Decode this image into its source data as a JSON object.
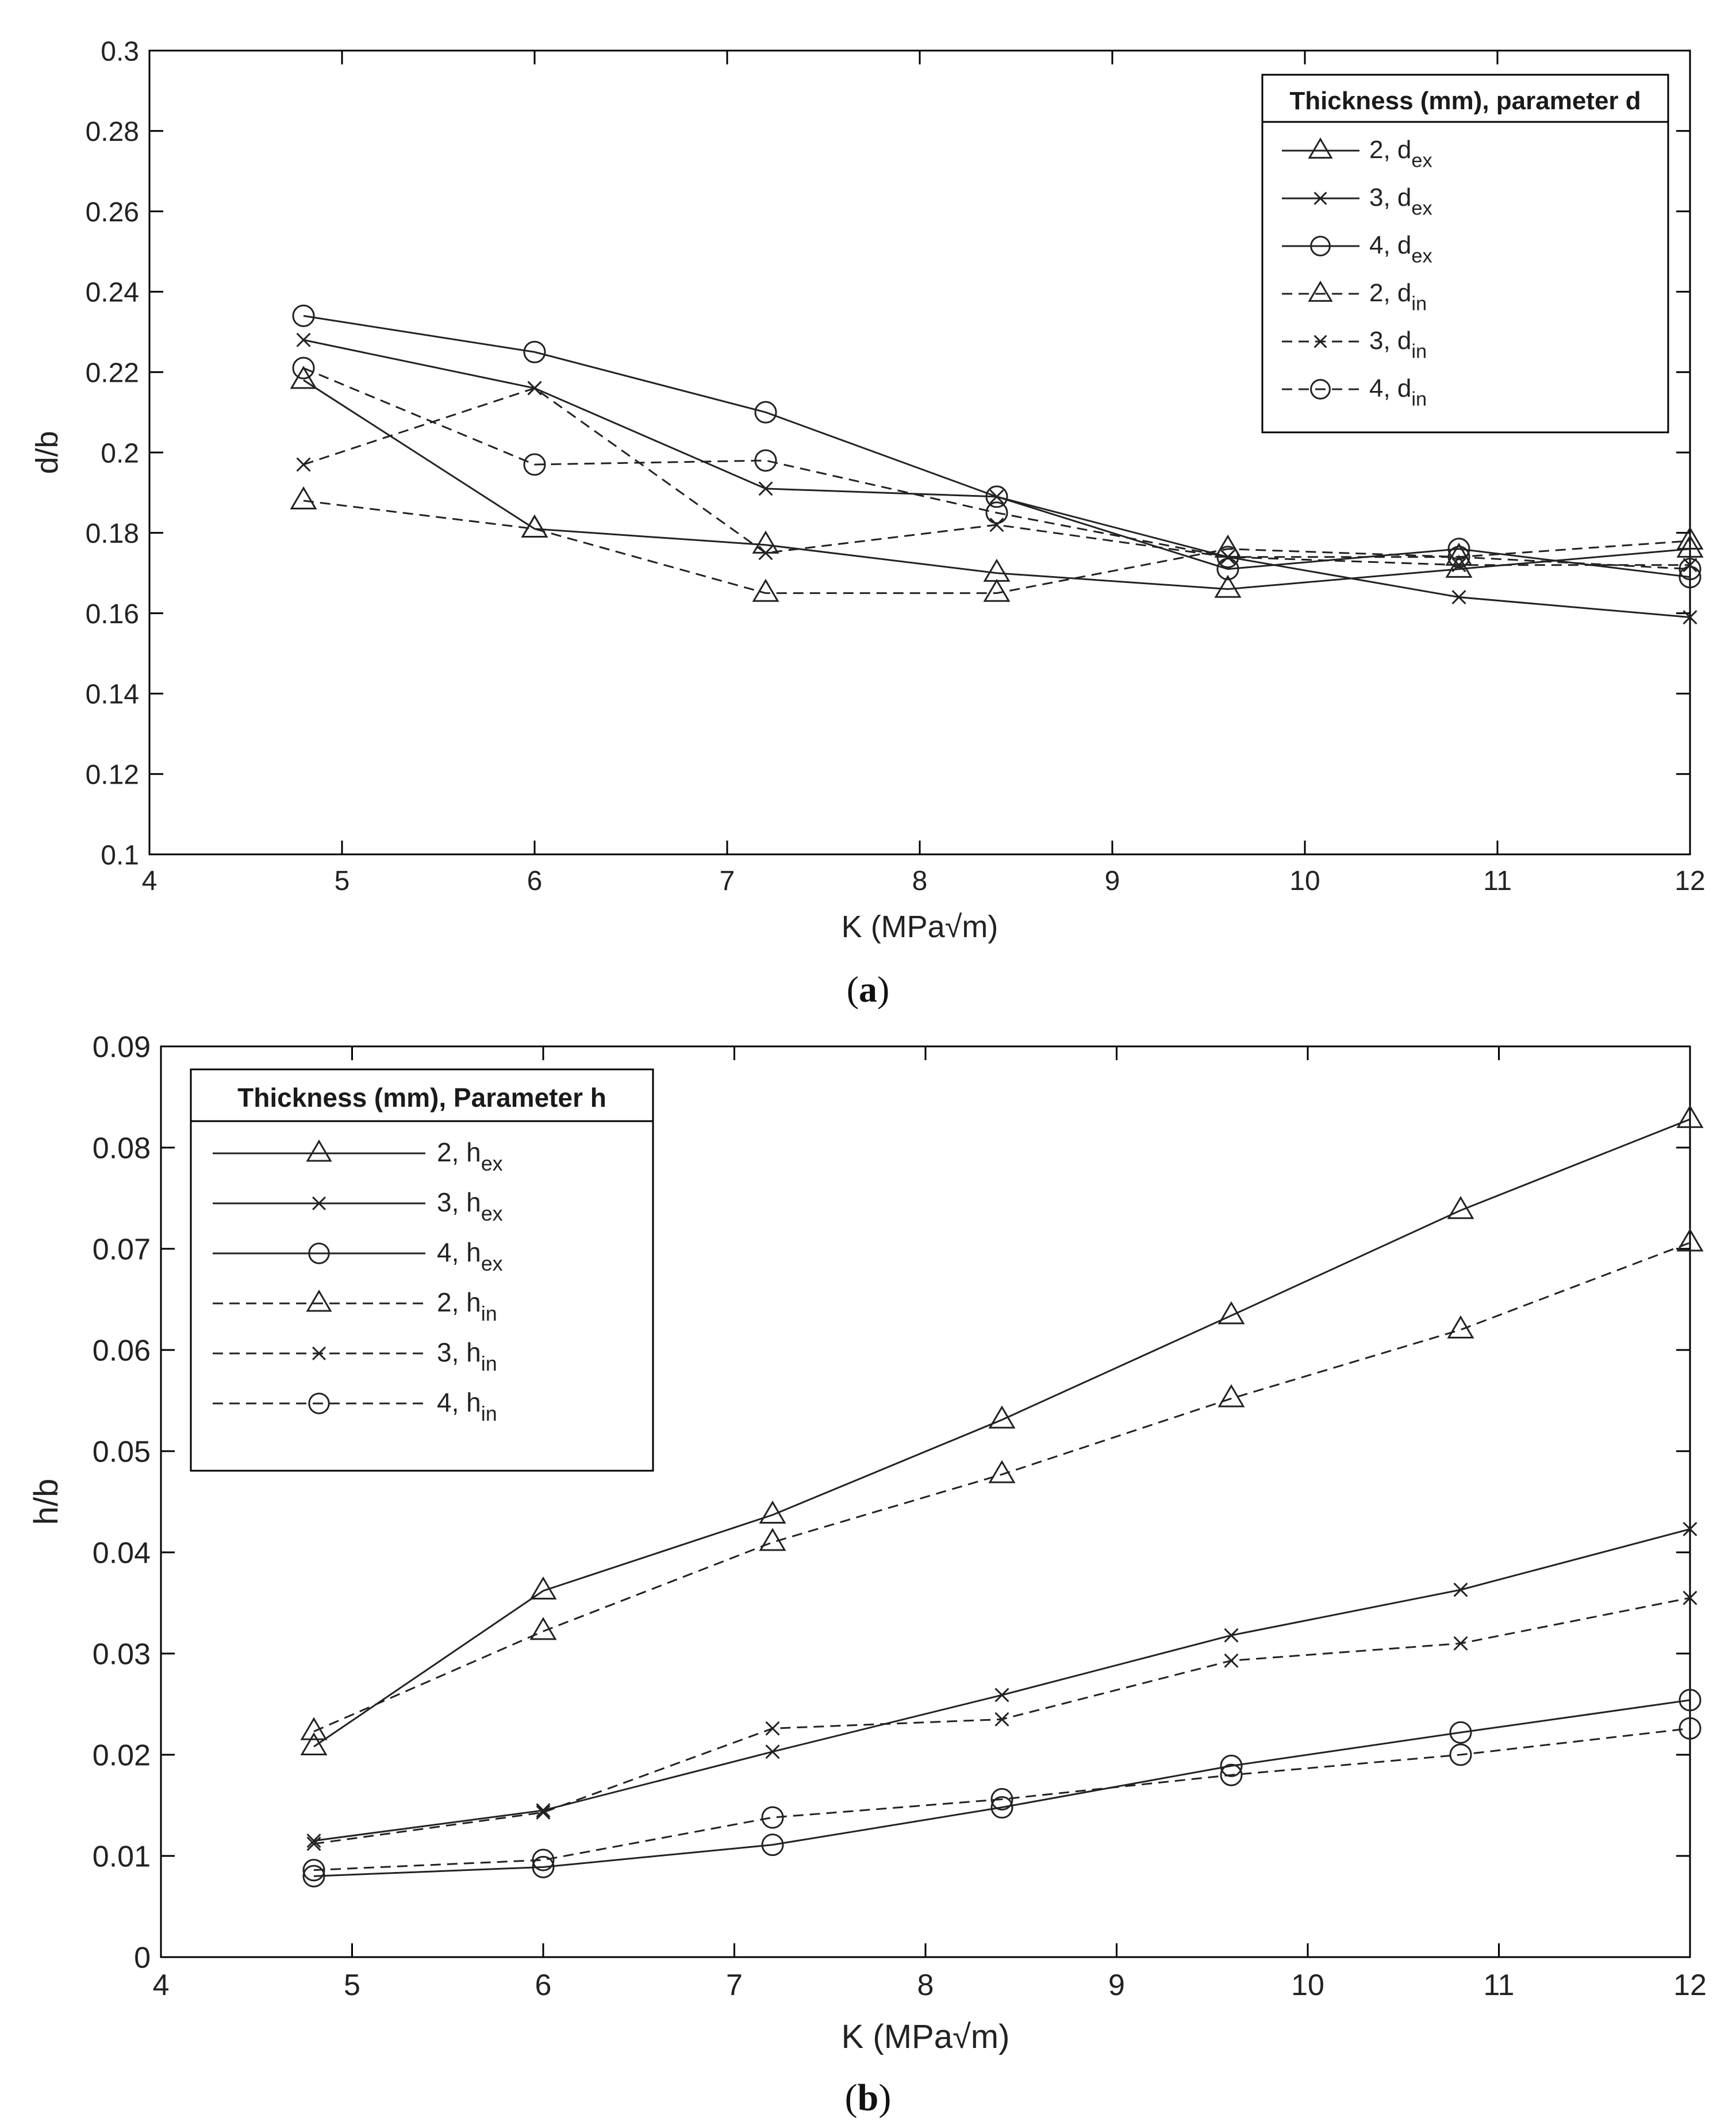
{
  "figure": {
    "caption_a": "(a)",
    "caption_a_letter": "a",
    "caption_b": "(b)",
    "caption_b_letter": "b"
  },
  "chart_data": [
    {
      "id": "a",
      "type": "line",
      "title": "",
      "xlabel": "K (MPa√m)",
      "ylabel": "d/b",
      "xlim": [
        4,
        12
      ],
      "ylim": [
        0.1,
        0.3
      ],
      "xticks": [
        4,
        5,
        6,
        7,
        8,
        9,
        10,
        11,
        12
      ],
      "yticks": [
        0.1,
        0.12,
        0.14,
        0.16,
        0.18,
        0.2,
        0.22,
        0.24,
        0.26,
        0.28,
        0.3
      ],
      "ytick_labels": [
        "0.1",
        "0.12",
        "0.14",
        "0.16",
        "0.18",
        "0.2",
        "0.22",
        "0.24",
        "0.26",
        "0.28",
        "0.3"
      ],
      "grid": false,
      "legend_title": "Thickness (mm), parameter d",
      "legend_position": "top-right",
      "x": [
        4.8,
        6,
        7.2,
        8.4,
        9.6,
        10.8,
        12
      ],
      "series": [
        {
          "name": "2, d_ex",
          "label_main": "2, d",
          "label_sub": "ex",
          "marker": "triangle",
          "style": "solid",
          "values": [
            0.218,
            0.181,
            0.177,
            0.17,
            0.166,
            0.171,
            0.176
          ]
        },
        {
          "name": "3, d_ex",
          "label_main": "3, d",
          "label_sub": "ex",
          "marker": "x",
          "style": "solid",
          "values": [
            0.228,
            0.216,
            0.191,
            0.189,
            0.174,
            0.164,
            0.159
          ]
        },
        {
          "name": "4, d_ex",
          "label_main": "4, d",
          "label_sub": "ex",
          "marker": "circle",
          "style": "solid",
          "values": [
            0.234,
            0.225,
            0.21,
            0.189,
            0.171,
            0.176,
            0.169
          ]
        },
        {
          "name": "2, d_in",
          "label_main": "2, d",
          "label_sub": "in",
          "marker": "triangle",
          "style": "dashed",
          "values": [
            0.188,
            0.181,
            0.165,
            0.165,
            0.176,
            0.174,
            0.178
          ]
        },
        {
          "name": "3, d_in",
          "label_main": "3, d",
          "label_sub": "in",
          "marker": "x",
          "style": "dashed",
          "values": [
            0.197,
            0.216,
            0.175,
            0.182,
            0.174,
            0.172,
            0.172
          ]
        },
        {
          "name": "4, d_in",
          "label_main": "4, d",
          "label_sub": "in",
          "marker": "circle",
          "style": "dashed",
          "values": [
            0.221,
            0.197,
            0.198,
            0.185,
            0.174,
            0.174,
            0.171
          ]
        }
      ]
    },
    {
      "id": "b",
      "type": "line",
      "title": "",
      "xlabel": "K (MPa√m)",
      "ylabel": "h/b",
      "xlim": [
        4,
        12
      ],
      "ylim": [
        0,
        0.09
      ],
      "xticks": [
        4,
        5,
        6,
        7,
        8,
        9,
        10,
        11,
        12
      ],
      "yticks": [
        0,
        0.01,
        0.02,
        0.03,
        0.04,
        0.05,
        0.06,
        0.07,
        0.08,
        0.09
      ],
      "ytick_labels": [
        "0",
        "0.01",
        "0.02",
        "0.03",
        "0.04",
        "0.05",
        "0.06",
        "0.07",
        "0.08",
        "0.09"
      ],
      "grid": false,
      "legend_title": "Thickness (mm), Parameter h",
      "legend_position": "top-left",
      "x": [
        4.8,
        6,
        7.2,
        8.4,
        9.6,
        10.8,
        12
      ],
      "series": [
        {
          "name": "2, h_ex",
          "label_main": "2, h",
          "label_sub": "ex",
          "marker": "triangle",
          "style": "solid",
          "values": [
            0.0208,
            0.0362,
            0.0437,
            0.0531,
            0.0634,
            0.0738,
            0.0828
          ]
        },
        {
          "name": "3, h_ex",
          "label_main": "3, h",
          "label_sub": "ex",
          "marker": "x",
          "style": "solid",
          "values": [
            0.0115,
            0.0145,
            0.0203,
            0.0259,
            0.0318,
            0.0363,
            0.0423
          ]
        },
        {
          "name": "4, h_ex",
          "label_main": "4, h",
          "label_sub": "ex",
          "marker": "circle",
          "style": "solid",
          "values": [
            0.008,
            0.0089,
            0.0111,
            0.0148,
            0.0189,
            0.0222,
            0.0254
          ]
        },
        {
          "name": "2, h_in",
          "label_main": "2, h",
          "label_sub": "in",
          "marker": "triangle",
          "style": "dashed",
          "values": [
            0.0223,
            0.0322,
            0.041,
            0.0477,
            0.0552,
            0.062,
            0.0706
          ]
        },
        {
          "name": "3, h_in",
          "label_main": "3, h",
          "label_sub": "in",
          "marker": "x",
          "style": "dashed",
          "values": [
            0.0112,
            0.0143,
            0.0226,
            0.0235,
            0.0293,
            0.031,
            0.0355
          ]
        },
        {
          "name": "4, h_in",
          "label_main": "4, h",
          "label_sub": "in",
          "marker": "circle",
          "style": "dashed",
          "values": [
            0.0086,
            0.0096,
            0.0138,
            0.0156,
            0.018,
            0.02,
            0.0226
          ]
        }
      ]
    }
  ]
}
